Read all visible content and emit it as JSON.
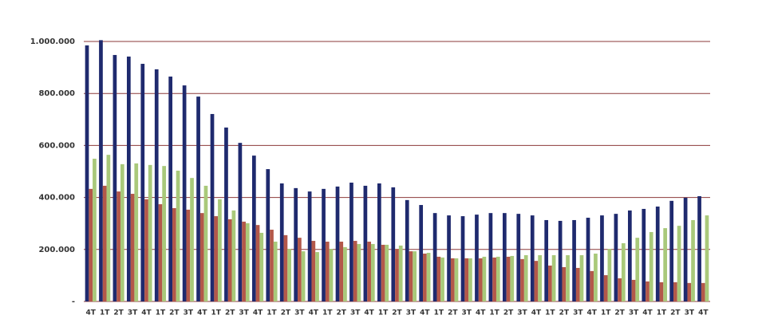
{
  "chart_data": {
    "type": "bar",
    "categories": [
      "4T",
      "1T",
      "2T",
      "3T",
      "4T",
      "1T",
      "2T",
      "3T",
      "4T",
      "1T",
      "2T",
      "3T",
      "4T",
      "1T",
      "2T",
      "3T",
      "4T",
      "1T",
      "2T",
      "3T",
      "4T",
      "1T",
      "2T",
      "3T",
      "4T",
      "1T",
      "2T",
      "3T",
      "4T",
      "1T",
      "2T",
      "3T",
      "4T",
      "1T",
      "2T",
      "3T",
      "4T",
      "1T",
      "2T",
      "3T",
      "4T",
      "1T",
      "2T",
      "3T",
      "4T"
    ],
    "series": [
      {
        "color": "#1f2a6e",
        "values": [
          985000,
          1005000,
          948000,
          942000,
          914000,
          893000,
          865000,
          831000,
          788000,
          721000,
          669000,
          610000,
          561000,
          509000,
          454000,
          436000,
          423000,
          433000,
          442000,
          457000,
          445000,
          454000,
          439000,
          390000,
          371000,
          340000,
          331000,
          328000,
          334000,
          340000,
          340000,
          337000,
          331000,
          313000,
          310000,
          313000,
          322000,
          331000,
          337000,
          350000,
          356000,
          365000,
          387000,
          399000,
          405000
        ]
      },
      {
        "color": "#b3584a",
        "values": [
          433000,
          445000,
          423000,
          414000,
          393000,
          374000,
          359000,
          353000,
          340000,
          328000,
          316000,
          307000,
          294000,
          276000,
          255000,
          245000,
          233000,
          230000,
          230000,
          233000,
          230000,
          218000,
          202000,
          193000,
          184000,
          172000,
          166000,
          166000,
          166000,
          169000,
          172000,
          163000,
          156000,
          138000,
          132000,
          129000,
          117000,
          101000,
          89000,
          83000,
          77000,
          74000,
          74000,
          71000,
          71000
        ]
      },
      {
        "color": "#a9c97a",
        "values": [
          549000,
          564000,
          528000,
          531000,
          525000,
          521000,
          503000,
          475000,
          445000,
          393000,
          350000,
          301000,
          264000,
          230000,
          202000,
          193000,
          190000,
          202000,
          209000,
          221000,
          221000,
          218000,
          215000,
          193000,
          187000,
          169000,
          166000,
          166000,
          172000,
          172000,
          175000,
          178000,
          178000,
          178000,
          178000,
          178000,
          184000,
          202000,
          224000,
          245000,
          267000,
          282000,
          291000,
          313000,
          331000
        ]
      }
    ],
    "ylim": [
      0,
      1000000
    ],
    "yticks": [
      {
        "value": 0,
        "label": "-"
      },
      {
        "value": 200000,
        "label": "200.000"
      },
      {
        "value": 400000,
        "label": "400.000"
      },
      {
        "value": 600000,
        "label": "600.000"
      },
      {
        "value": 800000,
        "label": "800.000"
      },
      {
        "value": 1000000,
        "label": "1.000.000"
      }
    ],
    "grid": true,
    "grid_color": "#8b3a3a"
  }
}
